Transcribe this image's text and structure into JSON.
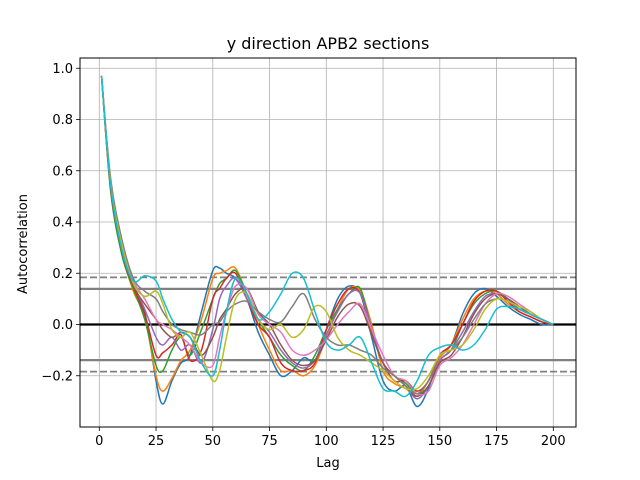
{
  "chart_data": {
    "type": "line",
    "title": "y direction APB2 sections",
    "xlabel": "Lag",
    "ylabel": "Autocorrelation",
    "xlim": [
      -8.5,
      210
    ],
    "ylim": [
      -0.4,
      1.04
    ],
    "xticks": [
      0,
      25,
      50,
      75,
      100,
      125,
      150,
      175,
      200
    ],
    "yticks": [
      -0.2,
      0.0,
      0.2,
      0.4,
      0.6,
      0.8,
      1.0
    ],
    "xtick_labels": [
      "0",
      "25",
      "50",
      "75",
      "100",
      "125",
      "150",
      "175",
      "200"
    ],
    "ytick_labels": [
      "−0.2",
      "0.0",
      "0.2",
      "0.4",
      "0.6",
      "0.8",
      "1.0"
    ],
    "grid": true,
    "reference_lines": [
      {
        "y": 0.0,
        "style": "solid",
        "color": "#000000"
      },
      {
        "y": 0.139,
        "style": "solid",
        "color": "#808080"
      },
      {
        "y": -0.139,
        "style": "solid",
        "color": "#808080"
      },
      {
        "y": 0.184,
        "style": "dashed",
        "color": "#808080"
      },
      {
        "y": -0.184,
        "style": "dashed",
        "color": "#808080"
      }
    ],
    "x": [
      1,
      5,
      10,
      15,
      20,
      25,
      28,
      32,
      36,
      40,
      45,
      50,
      53,
      56,
      60,
      65,
      70,
      75,
      80,
      85,
      90,
      95,
      100,
      105,
      110,
      115,
      120,
      125,
      130,
      135,
      140,
      145,
      150,
      155,
      160,
      165,
      170,
      175,
      180,
      185,
      190,
      195,
      200
    ],
    "series": [
      {
        "color": "#1f77b4",
        "values": [
          0.97,
          0.55,
          0.3,
          0.14,
          0.05,
          -0.22,
          -0.31,
          -0.22,
          -0.15,
          -0.12,
          0.05,
          0.21,
          0.22,
          0.2,
          0.18,
          0.1,
          -0.03,
          -0.12,
          -0.2,
          -0.18,
          -0.13,
          -0.14,
          -0.02,
          0.1,
          0.15,
          0.12,
          -0.05,
          -0.22,
          -0.26,
          -0.24,
          -0.32,
          -0.25,
          -0.12,
          -0.08,
          0.04,
          0.12,
          0.14,
          0.11,
          0.07,
          0.04,
          0.02,
          0.0,
          0.0
        ]
      },
      {
        "color": "#ff7f0e",
        "values": [
          0.97,
          0.54,
          0.28,
          0.13,
          0.03,
          -0.2,
          -0.26,
          -0.21,
          -0.14,
          -0.1,
          0.02,
          0.18,
          0.2,
          0.21,
          0.22,
          0.12,
          0.0,
          -0.1,
          -0.18,
          -0.18,
          -0.2,
          -0.16,
          -0.05,
          0.06,
          0.14,
          0.13,
          0.0,
          -0.18,
          -0.23,
          -0.25,
          -0.28,
          -0.22,
          -0.13,
          -0.08,
          0.02,
          0.1,
          0.13,
          0.12,
          0.08,
          0.05,
          0.03,
          0.01,
          0.0
        ]
      },
      {
        "color": "#2ca02c",
        "values": [
          0.97,
          0.52,
          0.27,
          0.14,
          0.02,
          -0.16,
          -0.18,
          -0.1,
          -0.05,
          -0.12,
          -0.02,
          0.1,
          0.16,
          0.18,
          0.21,
          0.12,
          0.02,
          -0.05,
          -0.12,
          -0.16,
          -0.18,
          -0.12,
          -0.02,
          0.06,
          0.12,
          0.14,
          -0.02,
          -0.15,
          -0.2,
          -0.23,
          -0.27,
          -0.24,
          -0.14,
          -0.1,
          0.0,
          0.08,
          0.12,
          0.13,
          0.1,
          0.06,
          0.04,
          0.02,
          0.0
        ]
      },
      {
        "color": "#d62728",
        "values": [
          0.97,
          0.53,
          0.29,
          0.15,
          0.04,
          -0.12,
          -0.11,
          -0.08,
          -0.04,
          -0.14,
          -0.1,
          0.1,
          0.14,
          0.18,
          0.2,
          0.1,
          0.0,
          -0.05,
          -0.15,
          -0.18,
          -0.18,
          -0.15,
          -0.02,
          0.08,
          0.14,
          0.12,
          -0.03,
          -0.15,
          -0.22,
          -0.22,
          -0.26,
          -0.22,
          -0.12,
          -0.08,
          0.0,
          0.09,
          0.13,
          0.13,
          0.09,
          0.05,
          0.03,
          0.01,
          0.0
        ]
      },
      {
        "color": "#9467bd",
        "values": [
          0.97,
          0.55,
          0.3,
          0.16,
          0.06,
          -0.05,
          -0.08,
          -0.05,
          -0.1,
          -0.08,
          -0.15,
          -0.02,
          0.1,
          0.15,
          0.18,
          0.1,
          0.02,
          -0.03,
          -0.1,
          -0.15,
          -0.17,
          -0.14,
          -0.04,
          0.05,
          0.12,
          0.12,
          -0.02,
          -0.15,
          -0.2,
          -0.24,
          -0.29,
          -0.24,
          -0.14,
          -0.1,
          -0.03,
          0.05,
          0.11,
          0.12,
          0.1,
          0.07,
          0.04,
          0.02,
          0.0
        ]
      },
      {
        "color": "#8c564b",
        "values": [
          0.97,
          0.54,
          0.28,
          0.15,
          0.08,
          0.02,
          -0.02,
          -0.05,
          -0.03,
          -0.05,
          -0.12,
          -0.05,
          0.02,
          0.06,
          0.12,
          0.14,
          0.05,
          0.0,
          -0.08,
          -0.14,
          -0.16,
          -0.14,
          -0.06,
          0.03,
          0.08,
          0.07,
          -0.04,
          -0.15,
          -0.2,
          -0.24,
          -0.28,
          -0.24,
          -0.15,
          -0.12,
          -0.05,
          0.04,
          0.1,
          0.12,
          0.1,
          0.07,
          0.04,
          0.02,
          0.0
        ]
      },
      {
        "color": "#e377c2",
        "values": [
          0.97,
          0.56,
          0.3,
          0.17,
          0.1,
          0.02,
          0.0,
          -0.02,
          -0.05,
          -0.08,
          -0.15,
          -0.16,
          -0.05,
          0.05,
          0.15,
          0.14,
          0.04,
          0.0,
          -0.03,
          -0.1,
          -0.12,
          -0.1,
          -0.06,
          0.0,
          0.05,
          0.08,
          -0.02,
          -0.12,
          -0.2,
          -0.22,
          -0.27,
          -0.26,
          -0.16,
          -0.13,
          -0.08,
          0.0,
          0.08,
          0.12,
          0.11,
          0.08,
          0.05,
          0.02,
          0.0
        ]
      },
      {
        "color": "#7f7f7f",
        "values": [
          0.97,
          0.57,
          0.33,
          0.18,
          0.13,
          0.1,
          0.05,
          0.0,
          -0.02,
          -0.03,
          -0.04,
          0.0,
          0.01,
          0.05,
          0.08,
          0.09,
          0.05,
          0.02,
          0.01,
          0.07,
          0.12,
          0.02,
          -0.05,
          -0.08,
          -0.08,
          -0.1,
          -0.12,
          -0.17,
          -0.2,
          -0.24,
          -0.27,
          -0.22,
          -0.12,
          -0.1,
          -0.05,
          0.02,
          0.08,
          0.1,
          0.09,
          0.06,
          0.04,
          0.02,
          0.0
        ]
      },
      {
        "color": "#bcbd22",
        "values": [
          0.97,
          0.55,
          0.31,
          0.16,
          0.11,
          0.13,
          0.08,
          -0.02,
          -0.05,
          -0.03,
          -0.12,
          -0.22,
          -0.18,
          -0.05,
          0.1,
          0.12,
          0.02,
          -0.02,
          0.0,
          -0.05,
          -0.02,
          0.07,
          0.05,
          -0.05,
          -0.1,
          -0.12,
          -0.15,
          -0.18,
          -0.22,
          -0.25,
          -0.25,
          -0.2,
          -0.12,
          -0.1,
          -0.08,
          -0.02,
          0.06,
          0.1,
          0.09,
          0.07,
          0.05,
          0.02,
          0.0
        ]
      },
      {
        "color": "#17becf",
        "values": [
          0.97,
          0.54,
          0.29,
          0.17,
          0.19,
          0.17,
          0.1,
          0.02,
          -0.03,
          -0.05,
          -0.15,
          -0.2,
          -0.1,
          0.05,
          0.18,
          0.12,
          0.02,
          0.05,
          0.12,
          0.2,
          0.18,
          0.05,
          -0.07,
          -0.1,
          -0.08,
          -0.05,
          -0.15,
          -0.25,
          -0.26,
          -0.28,
          -0.22,
          -0.12,
          -0.09,
          -0.08,
          -0.1,
          -0.08,
          -0.02,
          0.06,
          0.07,
          0.06,
          0.04,
          0.02,
          0.0
        ]
      }
    ]
  }
}
